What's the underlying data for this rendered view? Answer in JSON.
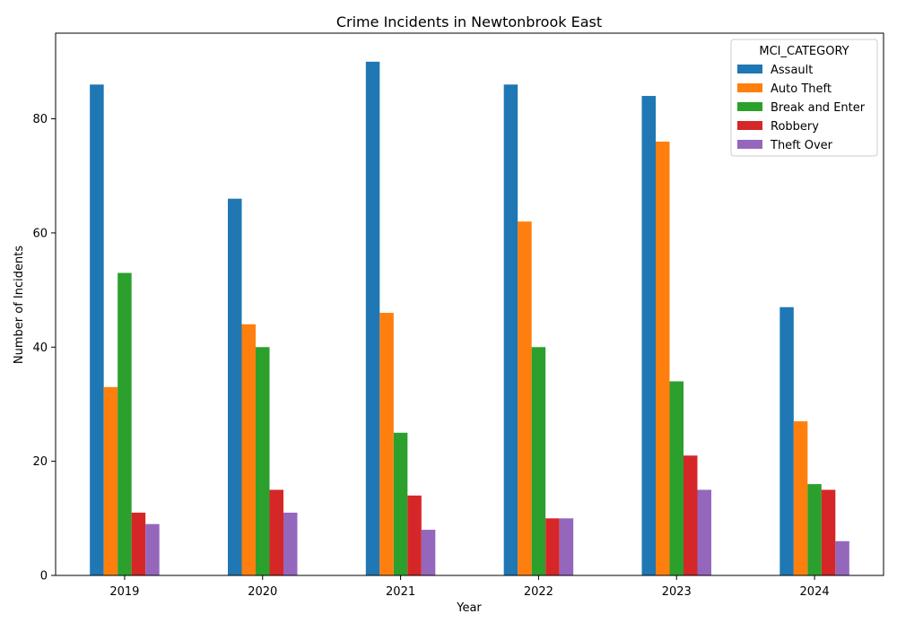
{
  "chart_data": {
    "type": "bar",
    "title": "Crime Incidents in Newtonbrook East",
    "xlabel": "Year",
    "ylabel": "Number of Incidents",
    "categories": [
      "2019",
      "2020",
      "2021",
      "2022",
      "2023",
      "2024"
    ],
    "ylim": [
      0,
      95
    ],
    "yticks": [
      0,
      20,
      40,
      60,
      80
    ],
    "grid": false,
    "legend": {
      "title": "MCI_CATEGORY",
      "placement": "top-right"
    },
    "series": [
      {
        "name": "Assault",
        "color": "#1f77b4",
        "values": [
          86,
          66,
          90,
          86,
          84,
          47
        ]
      },
      {
        "name": "Auto Theft",
        "color": "#ff7f0e",
        "values": [
          33,
          44,
          46,
          62,
          76,
          27
        ]
      },
      {
        "name": "Break and Enter",
        "color": "#2ca02c",
        "values": [
          53,
          40,
          25,
          40,
          34,
          16
        ]
      },
      {
        "name": "Robbery",
        "color": "#d62728",
        "values": [
          11,
          15,
          14,
          10,
          21,
          15
        ]
      },
      {
        "name": "Theft Over",
        "color": "#9467bd",
        "values": [
          9,
          11,
          8,
          10,
          15,
          6
        ]
      }
    ]
  }
}
